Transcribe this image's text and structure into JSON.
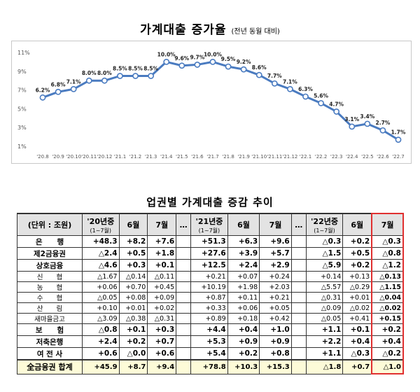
{
  "chart": {
    "title": "가계대출 증가율",
    "subtitle": "(전년 동월 대비)"
  },
  "chart_data": {
    "type": "line",
    "title": "가계대출 증가율",
    "subtitle": "(전년 동월 대비)",
    "x": [
      "'20.8",
      "'20.9",
      "'20.10",
      "'20.11",
      "'20.12",
      "'21.1",
      "'21.2",
      "'21.3",
      "'21.4",
      "'21.5",
      "'21.6",
      "'21.7",
      "'21.8",
      "'21.9",
      "'21.10",
      "'21.11",
      "'21.12",
      "'22.1",
      "'22.2",
      "'22.3",
      "'22.4",
      "'22.5",
      "'22.6",
      "'22.7"
    ],
    "series": [
      {
        "values": [
          6.2,
          6.8,
          7.1,
          8.0,
          8.0,
          8.5,
          8.5,
          8.5,
          10.0,
          9.6,
          9.7,
          10.0,
          9.5,
          9.2,
          8.6,
          7.7,
          7.1,
          6.3,
          5.6,
          4.7,
          3.1,
          3.4,
          2.7,
          1.7
        ]
      }
    ],
    "data_labels": [
      "6.2%",
      "6.8%",
      "7.1%",
      "8.0%",
      "8.0%",
      "8.5%",
      "8.5%",
      "8.5%",
      "10.0%",
      "9.6%",
      "9.7%",
      "10.0%",
      "9.5%",
      "9.2%",
      "8.6%",
      "7.7%",
      "7.1%",
      "6.3%",
      "5.6%",
      "4.7%",
      "3.1%",
      "3.4%",
      "2.7%",
      "1.7%"
    ],
    "yticks": [
      "1%",
      "3%",
      "5%",
      "7%",
      "9%",
      "11%"
    ],
    "ylim": [
      1,
      11
    ],
    "grid": false,
    "color": "#4a7bc0"
  },
  "table": {
    "title": "업권별 가계대출 증감 추이",
    "unit_header": "(단위 : 조원)",
    "headers": [
      {
        "main": "'20년중",
        "sub": "(1~7월)"
      },
      {
        "main": "6월"
      },
      {
        "main": "7월"
      },
      {
        "main": "…"
      },
      {
        "main": "'21년중",
        "sub": "(1~7월)"
      },
      {
        "main": "6월"
      },
      {
        "main": "7월"
      },
      {
        "main": "…"
      },
      {
        "main": "'22년중",
        "sub": "(1~7월)"
      },
      {
        "main": "6월"
      },
      {
        "main": "7월"
      }
    ],
    "rows": [
      {
        "label": "은　　행",
        "kind": "major",
        "values": [
          "+48.3",
          "+8.2",
          "+7.6",
          "+51.3",
          "+6.3",
          "+9.6",
          "△0.3",
          "+0.2",
          "△0.3"
        ]
      },
      {
        "label": "제2금융권",
        "kind": "major",
        "values": [
          "△2.4",
          "+0.5",
          "+1.8",
          "+27.6",
          "+3.9",
          "+5.7",
          "△1.5",
          "+0.5",
          "△0.8"
        ]
      },
      {
        "label": "상호금융",
        "kind": "major",
        "values": [
          "△4.6",
          "+0.3",
          "+0.1",
          "+12.5",
          "+2.4",
          "+2.9",
          "△5.9",
          "+0.2",
          "△1.2"
        ]
      },
      {
        "label": "신　　협",
        "kind": "minor",
        "values": [
          "△1.67",
          "△0.14",
          "△0.11",
          "+0.21",
          "+0.07",
          "+0.24",
          "+0.14",
          "+0.13",
          "△0.13"
        ]
      },
      {
        "label": "농　　협",
        "kind": "minor",
        "values": [
          "+0.06",
          "+0.70",
          "+0.45",
          "+10.19",
          "+1.98",
          "+2.03",
          "△5.57",
          "△0.29",
          "△1.15"
        ]
      },
      {
        "label": "수　　협",
        "kind": "minor",
        "values": [
          "△0.05",
          "+0.08",
          "+0.09",
          "+0.87",
          "+0.11",
          "+0.21",
          "△0.31",
          "+0.01",
          "△0.04"
        ]
      },
      {
        "label": "산　　림",
        "kind": "minor",
        "values": [
          "+0.10",
          "+0.01",
          "+0.02",
          "+0.33",
          "+0.06",
          "+0.05",
          "△0.09",
          "△0.02",
          "△0.02"
        ]
      },
      {
        "label": "새마을금고",
        "kind": "minor",
        "values": [
          "△3.09",
          "△0.38",
          "△0.31",
          "+0.89",
          "+0.18",
          "+0.42",
          "△0.05",
          "+0.41",
          "+0.15"
        ]
      },
      {
        "label": "보　　험",
        "kind": "major",
        "values": [
          "△0.8",
          "+0.1",
          "+0.3",
          "+4.4",
          "+0.4",
          "+1.0",
          "+1.1",
          "+0.1",
          "+0.2"
        ]
      },
      {
        "label": "저축은행",
        "kind": "major",
        "values": [
          "+2.4",
          "+0.2",
          "+0.7",
          "+5.3",
          "+0.9",
          "+0.9",
          "+2.2",
          "+0.4",
          "+0.4"
        ]
      },
      {
        "label": "여 전 사",
        "kind": "major",
        "values": [
          "+0.6",
          "△0.0",
          "+0.6",
          "+5.4",
          "+0.2",
          "+0.8",
          "+1.1",
          "△0.3",
          "△0.2"
        ]
      },
      {
        "label": "全금융권 합계",
        "kind": "total",
        "values": [
          "+45.9",
          "+8.7",
          "+9.4",
          "+78.8",
          "+10.3",
          "+15.3",
          "△1.8",
          "+0.7",
          "△1.0"
        ]
      }
    ]
  }
}
